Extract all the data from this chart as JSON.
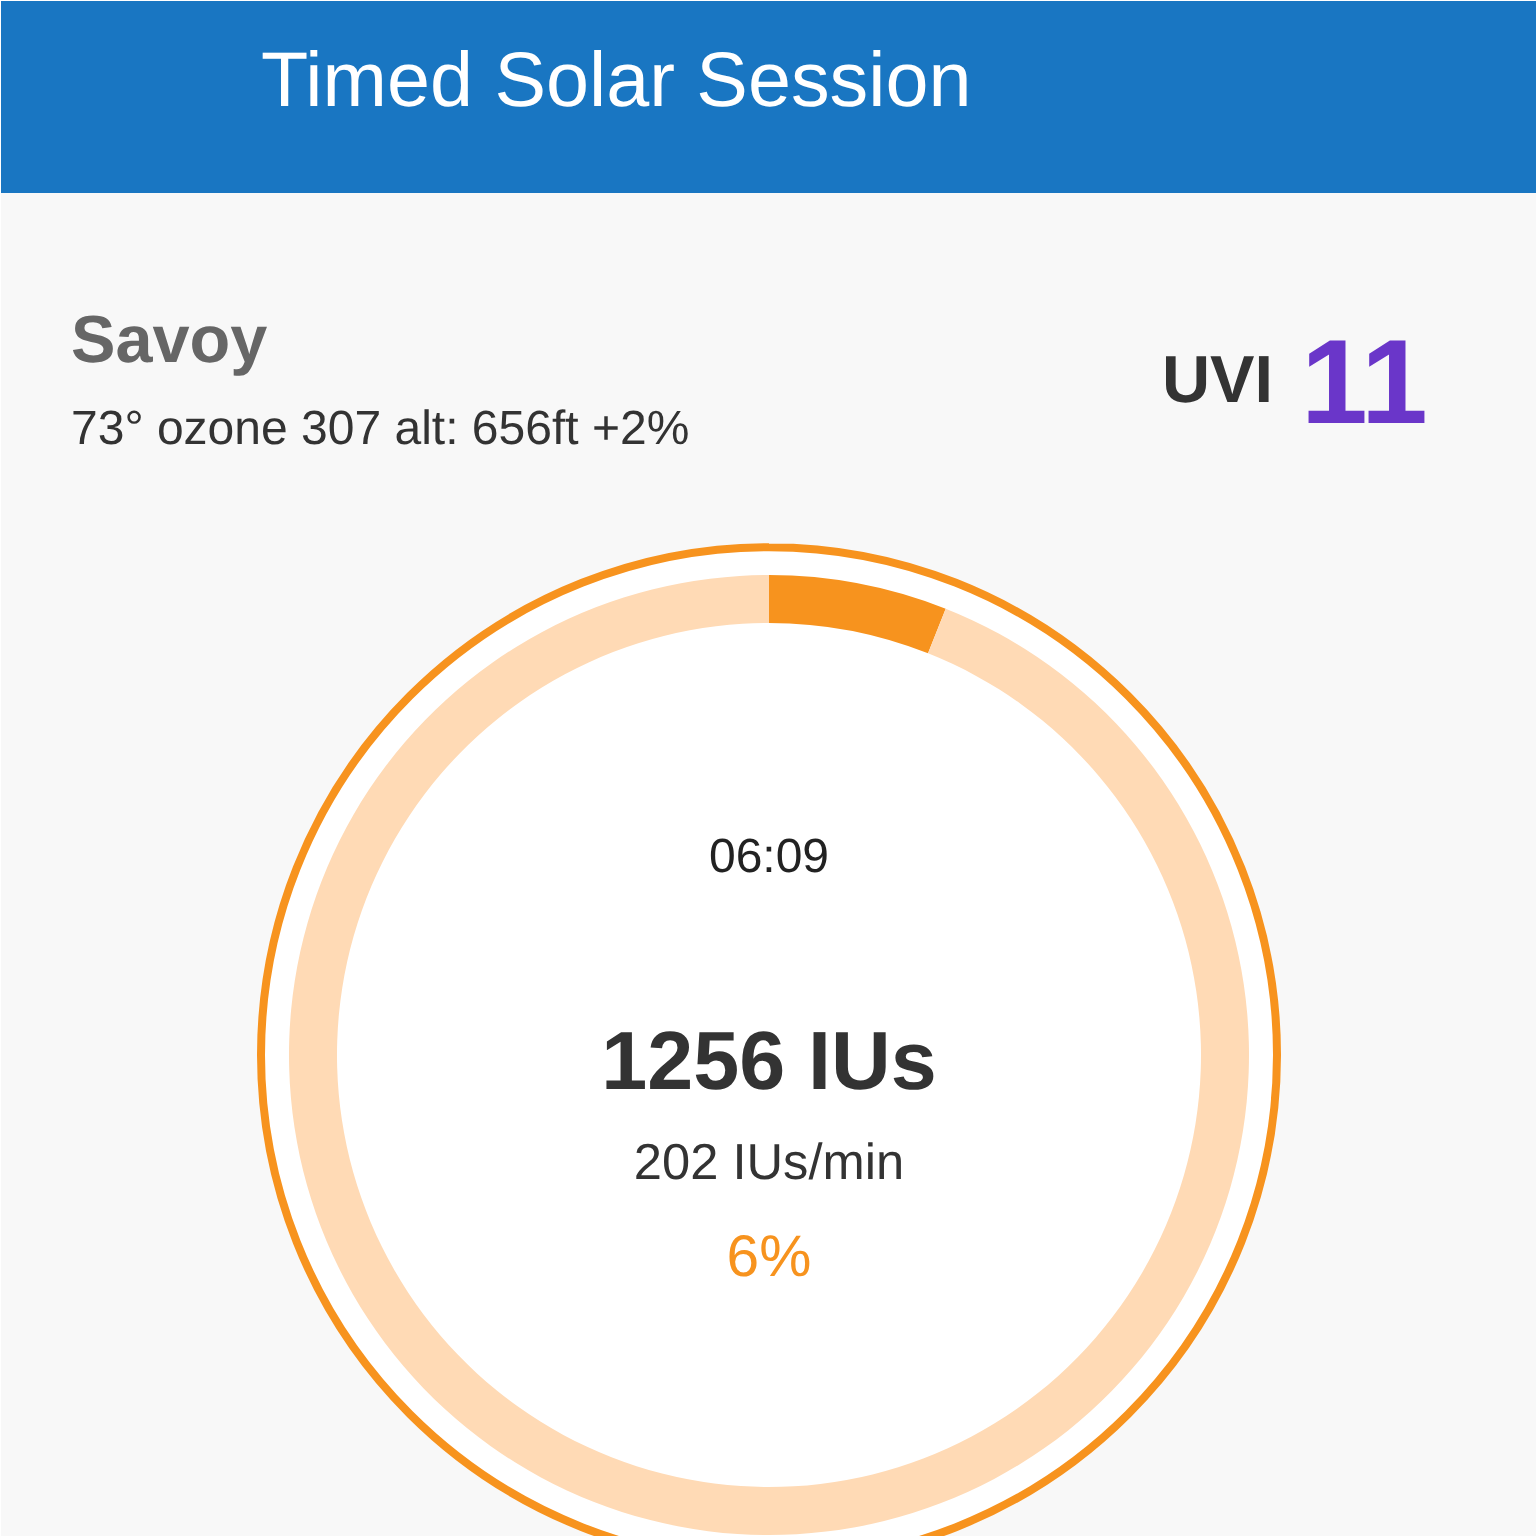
{
  "chart_data": {
    "type": "donut",
    "title": "Timed Solar Session",
    "categories": [
      null,
      null
    ],
    "values": [
      6,
      94
    ],
    "colors": [
      "#f7931e",
      "#ffdab5"
    ],
    "annotations": [
      "Savoy",
      "73° ozone 307 alt: 656ft +2%",
      "UVI",
      "11",
      "06:09",
      "1256 IUs",
      "202 IUs/min",
      "6%"
    ]
  }
}
